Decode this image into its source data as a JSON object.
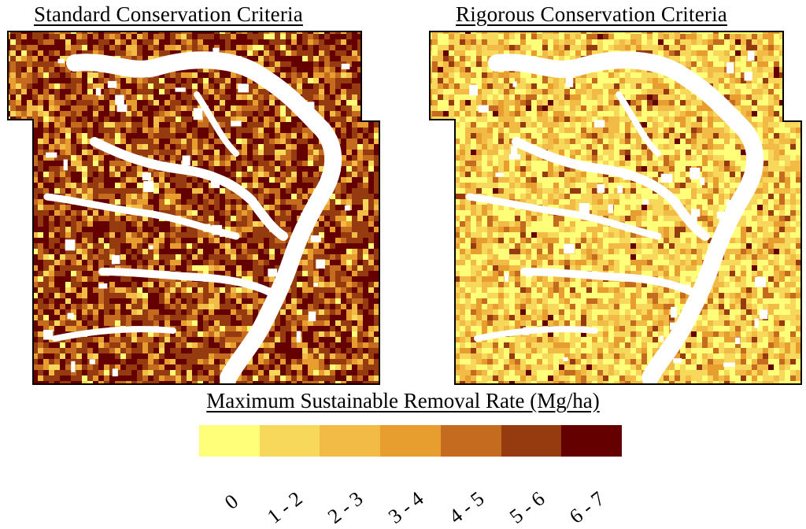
{
  "maps": {
    "left": {
      "title": "Standard Conservation Criteria",
      "dominant_classes": "4-7",
      "overall_tone": "dark brown"
    },
    "right": {
      "title": "Rigorous Conservation Criteria",
      "dominant_classes": "0-3",
      "overall_tone": "light yellow-orange"
    }
  },
  "legend": {
    "title": "Maximum Sustainable Removal Rate (Mg/ha)",
    "classes": [
      {
        "label": "0",
        "color": "#ffff7a"
      },
      {
        "label": "1 - 2",
        "color": "#f7d85a"
      },
      {
        "label": "2 - 3",
        "color": "#f2bb45"
      },
      {
        "label": "3 - 4",
        "color": "#e89e2f"
      },
      {
        "label": "4 - 5",
        "color": "#c56b1f"
      },
      {
        "label": "5 - 6",
        "color": "#963a10"
      },
      {
        "label": "6 - 7",
        "color": "#640000"
      }
    ]
  },
  "colors": {
    "no_data": "#ffffff",
    "outline": "#000000"
  }
}
